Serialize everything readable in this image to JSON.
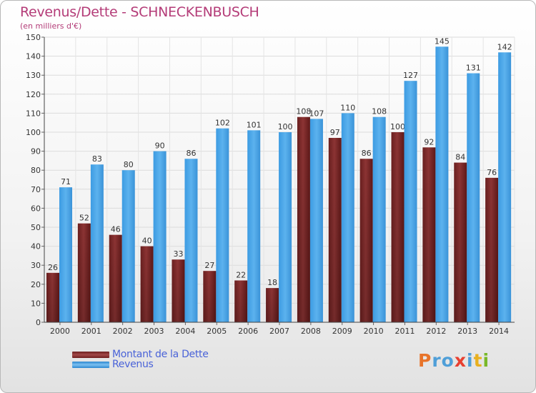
{
  "title": "Revenus/Dette - SCHNECKENBUSCH",
  "subtitle": "(en milliers d'€)",
  "legend": {
    "debt_label": "Montant de la Dette",
    "revenue_label": "Revenus"
  },
  "logo": {
    "text": "Proxiti"
  },
  "colors": {
    "debt": "#7a2a2a",
    "revenue": "#3a9be0",
    "title": "#b43c78",
    "legend_text": "#4a63d8",
    "logo_letters": [
      "#e8742a",
      "#4f9fd8",
      "#4f9fd8",
      "#e84030",
      "#4f9fd8",
      "#e8b020",
      "#78b828"
    ]
  },
  "chart_data": {
    "type": "bar",
    "categories": [
      "2000",
      "2001",
      "2002",
      "2003",
      "2004",
      "2005",
      "2006",
      "2007",
      "2008",
      "2009",
      "2010",
      "2011",
      "2012",
      "2013",
      "2014"
    ],
    "series": [
      {
        "name": "Montant de la Dette",
        "values": [
          26,
          52,
          46,
          40,
          33,
          27,
          22,
          18,
          108,
          97,
          86,
          100,
          92,
          84,
          76
        ]
      },
      {
        "name": "Revenus",
        "values": [
          71,
          83,
          80,
          90,
          86,
          102,
          101,
          100,
          107,
          110,
          108,
          127,
          145,
          131,
          142
        ]
      }
    ],
    "ylim": [
      0,
      150
    ],
    "yticks": [
      0,
      10,
      20,
      30,
      40,
      50,
      60,
      70,
      80,
      90,
      100,
      110,
      120,
      130,
      140,
      150
    ],
    "grid": true,
    "legend_position": "bottom-left"
  }
}
